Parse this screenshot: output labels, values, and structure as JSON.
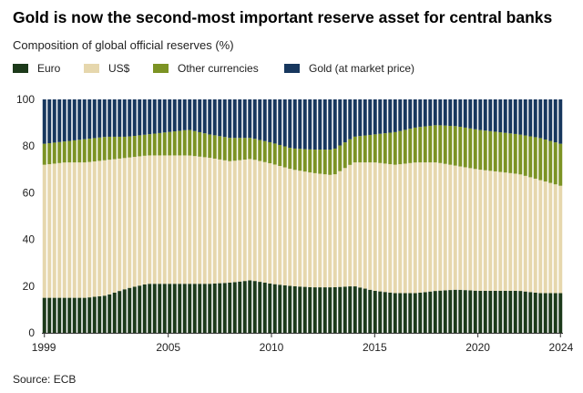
{
  "title": "Gold is now the second-most important reserve asset for central banks",
  "subtitle": "Composition of global official reserves (%)",
  "source": "Source: ECB",
  "legend": [
    {
      "label": "Euro",
      "color": "#1c3a1a"
    },
    {
      "label": "US$",
      "color": "#e6d7ad"
    },
    {
      "label": "Other currencies",
      "color": "#7c9324"
    },
    {
      "label": "Gold (at market price)",
      "color": "#17375e"
    }
  ],
  "chart_data": {
    "type": "bar",
    "stacked": true,
    "title": "Gold is now the second-most important reserve asset for central banks",
    "subtitle": "Composition of global official reserves (%)",
    "x_range": [
      1999,
      2024
    ],
    "x_ticks": [
      "1999",
      "2005",
      "2010",
      "2015",
      "2020",
      "2024"
    ],
    "y_ticks": [
      "0",
      "20",
      "40",
      "60",
      "80",
      "100"
    ],
    "ylim": [
      0,
      100
    ],
    "grid": false,
    "legend_position": "top",
    "bar_count": 104,
    "key_years": [
      1999,
      2000,
      2001,
      2002,
      2003,
      2004,
      2005,
      2006,
      2007,
      2008,
      2009,
      2010,
      2011,
      2012,
      2013,
      2014,
      2015,
      2016,
      2017,
      2018,
      2019,
      2020,
      2021,
      2022,
      2023,
      2024
    ],
    "series": [
      {
        "name": "Euro",
        "color": "#1c3a1a",
        "values": [
          15,
          15,
          15,
          16,
          19,
          21,
          21,
          21,
          21,
          21.5,
          22.5,
          21,
          20,
          19.5,
          19.5,
          20,
          18,
          17,
          17,
          18,
          18.5,
          18,
          18,
          18,
          17,
          17
        ]
      },
      {
        "name": "US$",
        "color": "#e6d7ad",
        "values": [
          57,
          58,
          58,
          58,
          56,
          55,
          55,
          55,
          54,
          52,
          52,
          51.5,
          50,
          49,
          48,
          53,
          55,
          55,
          56,
          55,
          53,
          52,
          51,
          50,
          48.5,
          46
        ]
      },
      {
        "name": "Other currencies",
        "color": "#7c9324",
        "values": [
          9,
          9,
          10,
          10,
          9,
          9,
          10,
          11,
          10,
          10,
          9,
          9,
          9,
          10,
          11,
          11,
          12,
          14,
          15,
          16,
          17,
          17,
          17,
          17,
          18,
          18
        ]
      },
      {
        "name": "Gold (at market price)",
        "color": "#17375e",
        "values": [
          19,
          18,
          17,
          16,
          16,
          15,
          14,
          13,
          15,
          16.5,
          16.5,
          18.5,
          21,
          21.5,
          21.5,
          16,
          15,
          14,
          12,
          11,
          11.5,
          13,
          14,
          15,
          16.5,
          19
        ]
      }
    ]
  }
}
